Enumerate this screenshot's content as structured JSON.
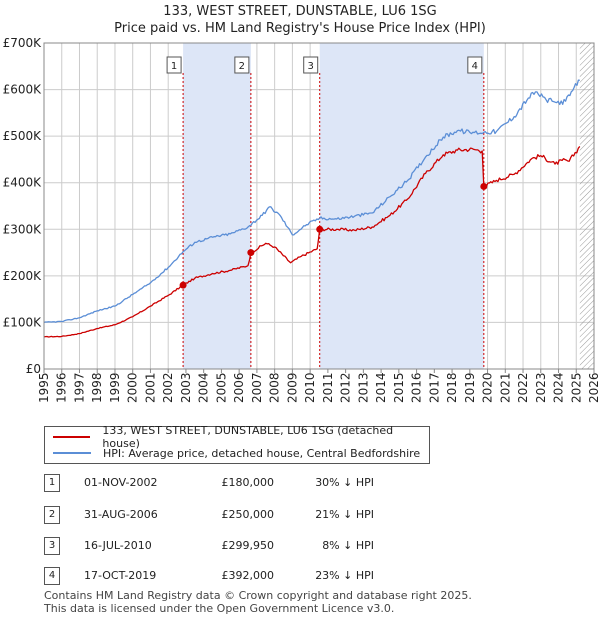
{
  "title": "133, WEST STREET, DUNSTABLE, LU6 1SG",
  "subtitle": "Price paid vs. HM Land Registry's House Price Index (HPI)",
  "colors": {
    "property": "#cc0000",
    "hpi": "#5b8ed6",
    "shade": "#dde6f7",
    "grid": "#cccccc"
  },
  "chart_data": {
    "type": "line",
    "x_range": [
      1995,
      2026
    ],
    "ylim": [
      0,
      700000
    ],
    "y_ticks": [
      {
        "value": 0,
        "label": "£0"
      },
      {
        "value": 100000,
        "label": "£100K"
      },
      {
        "value": 200000,
        "label": "£200K"
      },
      {
        "value": 300000,
        "label": "£300K"
      },
      {
        "value": 400000,
        "label": "£400K"
      },
      {
        "value": 500000,
        "label": "£500K"
      },
      {
        "value": 600000,
        "label": "£600K"
      },
      {
        "value": 700000,
        "label": "£700K"
      }
    ],
    "x_ticks": [
      "1995",
      "1996",
      "1997",
      "1998",
      "1999",
      "2000",
      "2001",
      "2002",
      "2003",
      "2004",
      "2005",
      "2006",
      "2007",
      "2008",
      "2009",
      "2010",
      "2011",
      "2012",
      "2013",
      "2014",
      "2015",
      "2016",
      "2017",
      "2018",
      "2019",
      "2020",
      "2021",
      "2022",
      "2023",
      "2024",
      "2025",
      "2026"
    ],
    "data_end": 2025.2,
    "series": [
      {
        "name": "133, WEST STREET, DUNSTABLE, LU6 1SG (detached house)",
        "color": "#cc0000",
        "points": [
          [
            1995.0,
            69000
          ],
          [
            1996.0,
            70000
          ],
          [
            1997.0,
            76000
          ],
          [
            1998.0,
            87000
          ],
          [
            1999.0,
            95000
          ],
          [
            2000.0,
            112000
          ],
          [
            2001.0,
            135000
          ],
          [
            2002.0,
            158000
          ],
          [
            2002.84,
            180000
          ],
          [
            2003.5,
            195000
          ],
          [
            2004.5,
            205000
          ],
          [
            2005.5,
            212000
          ],
          [
            2006.5,
            222000
          ],
          [
            2006.66,
            250000
          ],
          [
            2007.5,
            270000
          ],
          [
            2008.0,
            262000
          ],
          [
            2008.9,
            228000
          ],
          [
            2009.5,
            242000
          ],
          [
            2010.4,
            258000
          ],
          [
            2010.54,
            299950
          ],
          [
            2011.5,
            300000
          ],
          [
            2012.5,
            298000
          ],
          [
            2013.5,
            305000
          ],
          [
            2014.5,
            330000
          ],
          [
            2015.5,
            365000
          ],
          [
            2016.5,
            420000
          ],
          [
            2017.5,
            460000
          ],
          [
            2018.3,
            470000
          ],
          [
            2019.2,
            472000
          ],
          [
            2019.7,
            468000
          ],
          [
            2019.79,
            392000
          ],
          [
            2020.5,
            405000
          ],
          [
            2021.5,
            418000
          ],
          [
            2022.5,
            452000
          ],
          [
            2023.0,
            458000
          ],
          [
            2023.8,
            440000
          ],
          [
            2024.2,
            448000
          ],
          [
            2024.6,
            446000
          ],
          [
            2025.2,
            478000
          ]
        ]
      },
      {
        "name": "HPI: Average price, detached house, Central Bedfordshire",
        "color": "#5b8ed6",
        "points": [
          [
            1995.0,
            100000
          ],
          [
            1996.0,
            102000
          ],
          [
            1997.0,
            110000
          ],
          [
            1998.0,
            125000
          ],
          [
            1999.0,
            135000
          ],
          [
            2000.0,
            160000
          ],
          [
            2001.0,
            185000
          ],
          [
            2002.0,
            218000
          ],
          [
            2002.84,
            252000
          ],
          [
            2003.5,
            272000
          ],
          [
            2004.5,
            283000
          ],
          [
            2005.5,
            290000
          ],
          [
            2006.5,
            305000
          ],
          [
            2007.3,
            330000
          ],
          [
            2007.7,
            348000
          ],
          [
            2008.3,
            330000
          ],
          [
            2009.0,
            288000
          ],
          [
            2009.8,
            310000
          ],
          [
            2010.54,
            324000
          ],
          [
            2011.5,
            322000
          ],
          [
            2012.5,
            328000
          ],
          [
            2013.5,
            335000
          ],
          [
            2014.5,
            370000
          ],
          [
            2015.5,
            405000
          ],
          [
            2016.5,
            455000
          ],
          [
            2017.5,
            498000
          ],
          [
            2018.3,
            512000
          ],
          [
            2019.0,
            508000
          ],
          [
            2019.79,
            508000
          ],
          [
            2020.5,
            510000
          ],
          [
            2021.5,
            542000
          ],
          [
            2022.3,
            582000
          ],
          [
            2022.7,
            595000
          ],
          [
            2023.3,
            578000
          ],
          [
            2023.9,
            572000
          ],
          [
            2024.4,
            575000
          ],
          [
            2024.8,
            598000
          ],
          [
            2025.2,
            620000
          ]
        ]
      }
    ],
    "shaded_ranges": [
      [
        2002.84,
        2006.66
      ],
      [
        2010.54,
        2019.79
      ]
    ],
    "hatched_from": 2025.2,
    "markers": [
      {
        "label": "1",
        "x": 2002.84,
        "y": 180000
      },
      {
        "label": "2",
        "x": 2006.66,
        "y": 250000
      },
      {
        "label": "3",
        "x": 2010.54,
        "y": 299950
      },
      {
        "label": "4",
        "x": 2019.79,
        "y": 392000
      }
    ]
  },
  "legend": {
    "property_label": "133, WEST STREET, DUNSTABLE, LU6 1SG (detached house)",
    "hpi_label": "HPI: Average price, detached house, Central Bedfordshire"
  },
  "sales": [
    {
      "num": "1",
      "date": "01-NOV-2002",
      "price": "£180,000",
      "hpi": "30% ↓ HPI"
    },
    {
      "num": "2",
      "date": "31-AUG-2006",
      "price": "£250,000",
      "hpi": "21% ↓ HPI"
    },
    {
      "num": "3",
      "date": "16-JUL-2010",
      "price": "£299,950",
      "hpi": "8% ↓ HPI"
    },
    {
      "num": "4",
      "date": "17-OCT-2019",
      "price": "£392,000",
      "hpi": "23% ↓ HPI"
    }
  ],
  "footer": {
    "line1": "Contains HM Land Registry data © Crown copyright and database right 2025.",
    "line2": "This data is licensed under the Open Government Licence v3.0."
  }
}
